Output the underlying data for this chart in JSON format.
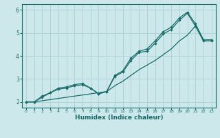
{
  "xlabel": "Humidex (Indice chaleur)",
  "xlim": [
    -0.5,
    23.5
  ],
  "ylim": [
    1.75,
    6.25
  ],
  "yticks": [
    2,
    3,
    4,
    5,
    6
  ],
  "xticks": [
    0,
    1,
    2,
    3,
    4,
    5,
    6,
    7,
    8,
    9,
    10,
    11,
    12,
    13,
    14,
    15,
    16,
    17,
    18,
    19,
    20,
    21,
    22,
    23
  ],
  "bg_color": "#cce8eb",
  "grid_color": "#aed4d8",
  "line_color": "#1a6b6b",
  "line1_x": [
    0,
    1,
    2,
    3,
    4,
    5,
    6,
    7,
    8,
    9,
    10,
    11,
    12,
    13,
    14,
    15,
    16,
    17,
    18,
    19,
    20,
    21,
    22,
    23
  ],
  "line1_y": [
    2.0,
    2.0,
    2.2,
    2.4,
    2.55,
    2.6,
    2.7,
    2.75,
    2.6,
    2.35,
    2.45,
    3.1,
    3.3,
    3.8,
    4.15,
    4.2,
    4.55,
    4.95,
    5.15,
    5.55,
    5.85,
    5.3,
    4.65,
    4.65
  ],
  "line2_x": [
    0,
    1,
    2,
    3,
    4,
    5,
    6,
    7,
    8,
    9,
    10,
    11,
    12,
    13,
    14,
    15,
    16,
    17,
    18,
    19,
    20,
    21,
    22,
    23
  ],
  "line2_y": [
    2.0,
    2.0,
    2.25,
    2.4,
    2.6,
    2.65,
    2.75,
    2.8,
    2.6,
    2.35,
    2.45,
    3.15,
    3.35,
    3.9,
    4.2,
    4.3,
    4.65,
    5.05,
    5.25,
    5.65,
    5.9,
    5.4,
    4.7,
    4.7
  ],
  "line3_x": [
    0,
    1,
    2,
    3,
    4,
    5,
    6,
    7,
    8,
    9,
    10,
    11,
    12,
    13,
    14,
    15,
    16,
    17,
    18,
    19,
    20,
    21,
    22,
    23
  ],
  "line3_y": [
    2.0,
    2.0,
    2.05,
    2.1,
    2.15,
    2.2,
    2.25,
    2.3,
    2.35,
    2.4,
    2.45,
    2.7,
    2.9,
    3.15,
    3.4,
    3.6,
    3.8,
    4.05,
    4.3,
    4.65,
    4.9,
    5.3,
    4.65,
    4.65
  ]
}
